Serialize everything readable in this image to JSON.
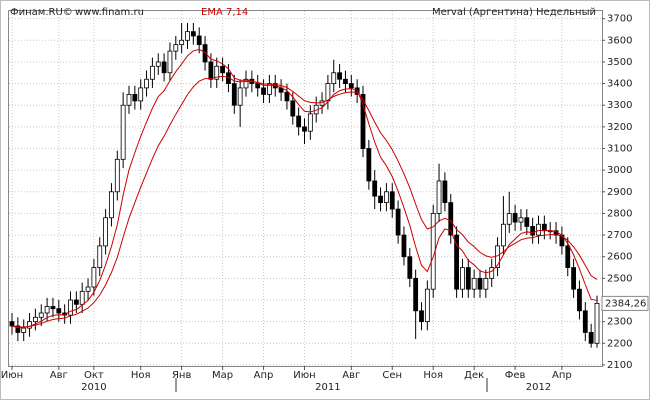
{
  "chart_data": {
    "type": "candlestick",
    "source": "Финам.RU©",
    "url": "www.finam.ru",
    "indicator": "EMA 7,14",
    "title": "Merval (Аргентина) Недельный",
    "categories": [
      "Июн",
      null,
      null,
      null,
      null,
      null,
      null,
      null,
      "Авг",
      null,
      null,
      null,
      null,
      null,
      "Окт",
      null,
      null,
      null,
      null,
      null,
      null,
      null,
      "Ноя",
      null,
      null,
      null,
      null,
      null,
      null,
      "Янв",
      null,
      null,
      null,
      null,
      null,
      null,
      "Мар",
      null,
      null,
      null,
      null,
      null,
      null,
      "Апр",
      null,
      null,
      null,
      null,
      null,
      null,
      "Июн",
      null,
      null,
      null,
      null,
      null,
      null,
      null,
      "Авг",
      null,
      null,
      null,
      null,
      null,
      null,
      "Сен",
      null,
      null,
      null,
      null,
      null,
      null,
      "Ноя",
      null,
      null,
      null,
      null,
      null,
      null,
      "Дек",
      null,
      null,
      null,
      null,
      null,
      null,
      "Фев",
      null,
      null,
      null,
      null,
      null,
      null,
      null,
      "Апр",
      null,
      null,
      null,
      null,
      null,
      null
    ],
    "years": [
      null,
      null,
      null,
      null,
      null,
      null,
      null,
      null,
      null,
      null,
      null,
      null,
      null,
      null,
      "2010",
      null,
      null,
      null,
      null,
      null,
      null,
      null,
      null,
      null,
      null,
      null,
      null,
      null,
      null,
      null,
      null,
      null,
      null,
      null,
      null,
      null,
      null,
      null,
      null,
      null,
      null,
      null,
      null,
      null,
      null,
      null,
      null,
      null,
      null,
      null,
      null,
      null,
      null,
      null,
      "2011",
      null,
      null,
      null,
      null,
      null,
      null,
      null,
      null,
      null,
      null,
      null,
      null,
      null,
      null,
      null,
      null,
      null,
      null,
      null,
      null,
      null,
      null,
      null,
      null,
      null,
      null,
      null,
      null,
      null,
      null,
      null,
      null,
      null,
      null,
      null,
      "2012",
      null,
      null,
      null,
      null,
      null,
      null,
      null,
      null,
      null,
      null
    ],
    "ohlc": {
      "open": [
        2300,
        2280,
        2250,
        2270,
        2300,
        2320,
        2340,
        2370,
        2360,
        2340,
        2330,
        2400,
        2380,
        2440,
        2460,
        2550,
        2650,
        2780,
        2900,
        3050,
        3300,
        3350,
        3320,
        3380,
        3420,
        3480,
        3500,
        3450,
        3550,
        3580,
        3600,
        3640,
        3620,
        3580,
        3500,
        3420,
        3480,
        3450,
        3400,
        3300,
        3380,
        3420,
        3400,
        3380,
        3350,
        3400,
        3380,
        3360,
        3320,
        3250,
        3200,
        3180,
        3260,
        3300,
        3320,
        3400,
        3450,
        3420,
        3400,
        3380,
        3350,
        3100,
        2950,
        2880,
        2850,
        2900,
        2820,
        2700,
        2600,
        2500,
        2350,
        2300,
        2450,
        2800,
        2950,
        2850,
        2700,
        2450,
        2550,
        2450,
        2500,
        2450,
        2500,
        2550,
        2650,
        2750,
        2800,
        2760,
        2780,
        2740,
        2700,
        2750,
        2720,
        2720,
        2700,
        2650,
        2550,
        2450,
        2350,
        2250,
        2200
      ],
      "high": [
        2340,
        2320,
        2310,
        2340,
        2360,
        2380,
        2410,
        2410,
        2400,
        2380,
        2440,
        2440,
        2480,
        2500,
        2590,
        2690,
        2820,
        2940,
        3090,
        3360,
        3390,
        3390,
        3420,
        3460,
        3520,
        3540,
        3540,
        3590,
        3620,
        3680,
        3680,
        3680,
        3660,
        3620,
        3540,
        3520,
        3520,
        3490,
        3440,
        3420,
        3460,
        3460,
        3440,
        3420,
        3440,
        3440,
        3420,
        3400,
        3360,
        3290,
        3240,
        3300,
        3340,
        3360,
        3440,
        3510,
        3490,
        3460,
        3440,
        3420,
        3390,
        3140,
        3000,
        2920,
        2940,
        2940,
        2860,
        2740,
        2640,
        2540,
        2390,
        2490,
        2840,
        3030,
        2990,
        2890,
        2740,
        2590,
        2590,
        2540,
        2540,
        2540,
        2590,
        2690,
        2880,
        2900,
        2840,
        2820,
        2820,
        2780,
        2790,
        2790,
        2760,
        2760,
        2740,
        2690,
        2590,
        2490,
        2390,
        2290,
        2420
      ],
      "low": [
        2240,
        2210,
        2210,
        2230,
        2260,
        2280,
        2300,
        2320,
        2300,
        2290,
        2290,
        2340,
        2340,
        2400,
        2420,
        2510,
        2610,
        2740,
        2860,
        3010,
        3260,
        3280,
        3280,
        3340,
        3380,
        3440,
        3410,
        3410,
        3510,
        3540,
        3560,
        3580,
        3540,
        3460,
        3380,
        3380,
        3410,
        3360,
        3260,
        3200,
        3340,
        3360,
        3340,
        3310,
        3310,
        3340,
        3320,
        3280,
        3210,
        3160,
        3120,
        3140,
        3220,
        3260,
        3280,
        3360,
        3380,
        3360,
        3340,
        3310,
        3060,
        2910,
        2820,
        2810,
        2810,
        2780,
        2660,
        2560,
        2460,
        2220,
        2260,
        2260,
        2410,
        2760,
        2810,
        2660,
        2410,
        2410,
        2410,
        2410,
        2410,
        2410,
        2460,
        2510,
        2610,
        2710,
        2720,
        2720,
        2700,
        2660,
        2660,
        2680,
        2680,
        2660,
        2610,
        2510,
        2410,
        2310,
        2210,
        2180,
        2180
      ],
      "close": [
        2280,
        2250,
        2270,
        2300,
        2320,
        2340,
        2370,
        2360,
        2340,
        2330,
        2400,
        2380,
        2440,
        2460,
        2550,
        2650,
        2780,
        2900,
        3050,
        3300,
        3350,
        3320,
        3380,
        3420,
        3480,
        3500,
        3450,
        3550,
        3580,
        3600,
        3640,
        3620,
        3580,
        3500,
        3420,
        3480,
        3450,
        3400,
        3300,
        3380,
        3420,
        3400,
        3380,
        3350,
        3400,
        3380,
        3360,
        3320,
        3250,
        3200,
        3180,
        3260,
        3300,
        3320,
        3400,
        3450,
        3420,
        3400,
        3380,
        3350,
        3100,
        2950,
        2880,
        2850,
        2900,
        2820,
        2700,
        2600,
        2500,
        2350,
        2300,
        2450,
        2800,
        2950,
        2850,
        2700,
        2450,
        2550,
        2450,
        2500,
        2450,
        2500,
        2550,
        2650,
        2750,
        2800,
        2760,
        2780,
        2740,
        2700,
        2750,
        2720,
        2720,
        2700,
        2650,
        2550,
        2450,
        2350,
        2250,
        2200,
        2384.26
      ]
    },
    "ema": [
      {
        "color": "#cc0000",
        "values": [
          2280,
          2272,
          2272,
          2279,
          2289,
          2302,
          2319,
          2329,
          2332,
          2331,
          2348,
          2356,
          2377,
          2398,
          2436,
          2490,
          2562,
          2647,
          2747,
          2885,
          3001,
          3081,
          3156,
          3222,
          3286,
          3340,
          3367,
          3413,
          3455,
          3491,
          3528,
          3551,
          3558,
          3544,
          3513,
          3505,
          3491,
          3468,
          3426,
          3415,
          3416,
          3412,
          3404,
          3391,
          3393,
          3390,
          3382,
          3367,
          3338,
          3303,
          3272,
          3269,
          3277,
          3288,
          3316,
          3350,
          3367,
          3375,
          3376,
          3370,
          3302,
          3214,
          3130,
          3060,
          3020,
          2970,
          2903,
          2827,
          2745,
          2646,
          2560,
          2532,
          2599,
          2687,
          2728,
          2721,
          2653,
          2627,
          2583,
          2562,
          2534,
          2526,
          2532,
          2561,
          2608,
          2656,
          2682,
          2707,
          2715,
          2711,
          2721,
          2721,
          2721,
          2716,
          2699,
          2662,
          2609,
          2544,
          2471,
          2403,
          2398
        ]
      },
      {
        "color": "#cc0000",
        "values": [
          2280,
          2276,
          2275,
          2278,
          2284,
          2291,
          2302,
          2310,
          2314,
          2316,
          2327,
          2334,
          2348,
          2363,
          2388,
          2423,
          2470,
          2527,
          2597,
          2690,
          2778,
          2850,
          2921,
          2987,
          3053,
          3112,
          3157,
          3209,
          3258,
          3304,
          3349,
          3385,
          3411,
          3423,
          3423,
          3430,
          3433,
          3429,
          3412,
          3408,
          3410,
          3409,
          3405,
          3398,
          3398,
          3396,
          3391,
          3382,
          3364,
          3342,
          3321,
          3313,
          3311,
          3312,
          3324,
          3341,
          3351,
          3358,
          3361,
          3360,
          3325,
          3275,
          3222,
          3173,
          3137,
          3095,
          3042,
          2983,
          2919,
          2843,
          2771,
          2728,
          2738,
          2766,
          2777,
          2767,
          2725,
          2702,
          2668,
          2646,
          2620,
          2604,
          2597,
          2604,
          2623,
          2647,
          2662,
          2678,
          2686,
          2688,
          2696,
          2699,
          2702,
          2702,
          2695,
          2676,
          2646,
          2607,
          2560,
          2512,
          2495
        ]
      }
    ],
    "last_label": {
      "value": 2384.26,
      "label": "2384,26"
    },
    "ylim": [
      2095,
      3740
    ],
    "yticks": [
      2100,
      2200,
      2300,
      2400,
      2500,
      2600,
      2700,
      2800,
      2900,
      3000,
      3100,
      3200,
      3300,
      3400,
      3500,
      3600,
      3700
    ],
    "grid": true,
    "up_color": "#ffffff",
    "down_color": "#000000"
  }
}
